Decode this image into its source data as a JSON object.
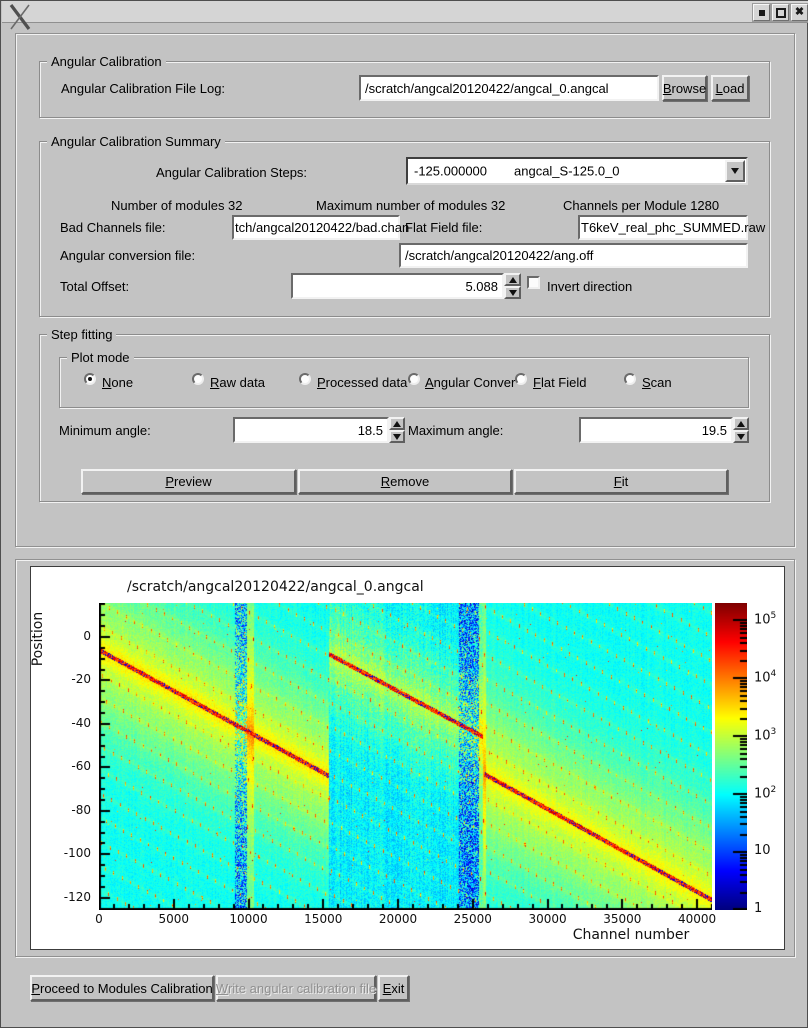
{
  "titlebar": {
    "title": "",
    "close_glyph": "✖"
  },
  "colors": {
    "window_bg": "#c3c3c3",
    "titlebar_bg": "#d5d5d5",
    "field_bg": "#ffffff",
    "plot_bg": "#ffffff"
  },
  "angular_calibration": {
    "legend": "Angular Calibration",
    "file_log_label": "Angular Calibration File Log:",
    "file_log_value": "/scratch/angcal20120422/angcal_0.angcal",
    "browse_button": "Browse",
    "load_button": "Load"
  },
  "summary": {
    "legend": "Angular Calibration Summary",
    "steps_label": "Angular Calibration Steps:",
    "steps_value": "-125.000000",
    "steps_name": "angcal_S-125.0_0",
    "modules_info": "Number of modules 32",
    "max_modules_info": "Maximum number of modules 32",
    "channels_info": "Channels per Module 1280",
    "bad_channels_label": "Bad Channels file:",
    "bad_channels_value": "tch/angcal20120422/bad.chan",
    "flat_field_label": "Flat Field file:",
    "flat_field_value": "T6keV_real_phc_SUMMED.raw",
    "ang_conversion_label": "Angular conversion file:",
    "ang_conversion_value": "/scratch/angcal20120422/ang.off",
    "total_offset_label": "Total Offset:",
    "total_offset_value": "5.088",
    "invert_label": "Invert direction",
    "invert_checked": false
  },
  "step_fitting": {
    "legend": "Step fitting",
    "plot_mode_legend": "Plot mode",
    "modes": [
      {
        "label": "None",
        "selected": true
      },
      {
        "label": "Raw data",
        "selected": false
      },
      {
        "label": "Processed data",
        "selected": false
      },
      {
        "label": "Angular Conver",
        "selected": false
      },
      {
        "label": "Flat Field",
        "selected": false
      },
      {
        "label": "Scan",
        "selected": false
      }
    ],
    "min_angle_label": "Minimum angle:",
    "min_angle_value": "18.5",
    "max_angle_label": "Maximum angle:",
    "max_angle_value": "19.5",
    "preview_button": "Preview",
    "remove_button": "Remove",
    "fit_button": "Fit"
  },
  "footer": {
    "proceed_button": "Proceed to Modules Calibration",
    "write_button": "Write angular calibration file",
    "write_disabled": true,
    "exit_button": "Exit"
  },
  "chart_data": {
    "type": "heatmap",
    "title": "/scratch/angcal20120422/angcal_0.angcal",
    "xlabel": "Channel number",
    "ylabel": "Position",
    "xlim": [
      0,
      41000
    ],
    "ylim": [
      -125.6,
      15.6
    ],
    "x_major_ticks": [
      0,
      5000,
      10000,
      15000,
      20000,
      25000,
      30000,
      35000,
      40000
    ],
    "x_minor_step": 1000,
    "y_major_ticks": [
      0,
      -20,
      -40,
      -60,
      -80,
      -100,
      -120
    ],
    "y_minor_step": 5,
    "grid": false,
    "legend_position": "right-colorbar",
    "colormap": "jet",
    "value_scale": "log",
    "value_range": [
      1,
      200000
    ],
    "colorbar_decades": [
      5,
      4,
      3,
      2,
      1,
      0
    ],
    "sections": [
      {
        "x_range": [
          0,
          15400
        ],
        "ridge_from": [
          0,
          -6
        ],
        "ridge_to": [
          15400,
          -64
        ],
        "base": 2.05,
        "glow_amp": 0.88,
        "glow_sigma": 38,
        "sharp_amp": 0.45,
        "sharp_sigma": 7,
        "noise": 0.35,
        "column_noise": 0.14
      },
      {
        "x_range": [
          15400,
          25700
        ],
        "ridge_from": [
          15400,
          -8
        ],
        "ridge_to": [
          25700,
          -46
        ],
        "base": 1.92,
        "glow_amp": 0.65,
        "glow_sigma": 27,
        "sharp_amp": 0.35,
        "sharp_sigma": 7,
        "noise": 0.6,
        "column_noise": 0.3
      },
      {
        "x_range": [
          25700,
          41300
        ],
        "ridge_from": [
          25750,
          -63
        ],
        "ridge_to": [
          41250,
          -122
        ],
        "base": 2.05,
        "glow_amp": 0.9,
        "glow_sigma": 40,
        "sharp_amp": 0.35,
        "sharp_sigma": 7,
        "noise": 0.32,
        "column_noise": 0.14
      }
    ],
    "vertical_bands": [
      {
        "x_range": [
          9100,
          9900
        ],
        "type": "noisy"
      },
      {
        "x_range": [
          24100,
          25400
        ],
        "type": "noisy"
      },
      {
        "x_range": [
          9900,
          10400
        ],
        "type": "bright"
      },
      {
        "x_range": [
          25400,
          25900
        ],
        "type": "bright"
      }
    ],
    "harmonic_spacing": 11,
    "ridge_value": 4.35
  }
}
